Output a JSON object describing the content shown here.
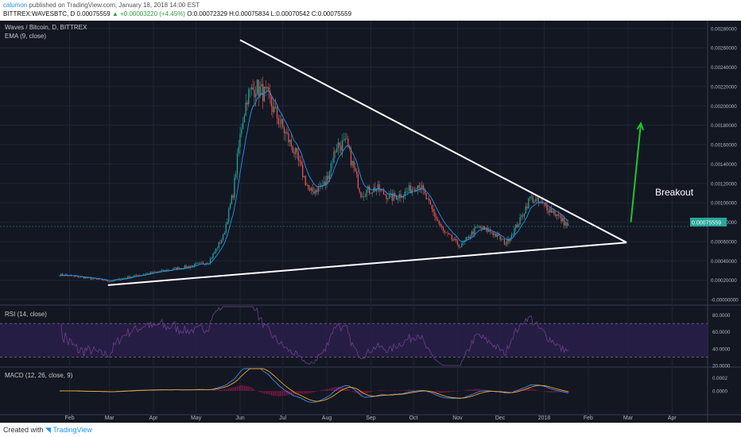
{
  "header": {
    "author": "calumon",
    "published": "published on TradingView.com, January 18, 2018 14:00 EST",
    "symbol": "BITTREX:WAVESBTC, D",
    "open": "0.00075559",
    "change": "▲ +0.00003220 (+4.45%)",
    "o": "O:0.00072329",
    "h": "H:0.00075834",
    "l": "L:0.00070542",
    "c": "C:0.00075559"
  },
  "legend": {
    "pair": "Waves / Bitcoin, D, BITTREX",
    "ema": "EMA (9, close)",
    "rsi": "RSI (14, close)",
    "macd": "MACD (12, 26, close, 9)"
  },
  "annotation": {
    "breakout": "Breakout"
  },
  "current_price_label": "0.00075559",
  "footer": {
    "created_with": "Created with",
    "brand": "TradingView"
  },
  "colors": {
    "background": "#131722",
    "up": "#26a69a",
    "down": "#ef5350",
    "ema": "#2196f3",
    "trendline": "#ffffff",
    "arrow": "#22c42a",
    "rsi_band": "#2a1f4a",
    "rsi_line": "#6b3f8c",
    "macd_line": "#3b8ff0",
    "signal_line": "#f5a623",
    "hist": "#c2185b"
  },
  "chart_data": {
    "type": "candlestick",
    "title": "Waves / Bitcoin, D, BITTREX",
    "x_tick_labels": [
      "Feb",
      "Mar",
      "Apr",
      "May",
      "Jun",
      "Jul",
      "Aug",
      "Sep",
      "Oct",
      "Nov",
      "Dec",
      "2018",
      "Feb",
      "Mar",
      "Apr"
    ],
    "y_tick_labels": [
      "0.00280000",
      "0.00260000",
      "0.00240000",
      "0.00220000",
      "0.00200000",
      "0.00180000",
      "0.00160000",
      "0.00140000",
      "0.00120000",
      "0.00100000",
      "0.00080000",
      "0.00060000",
      "0.00040000",
      "0.00020000",
      "-0.00000000"
    ],
    "ylim": [
      -4e-05,
      0.00288
    ],
    "close_series": [
      [
        "2017-01-25",
        0.00026
      ],
      [
        "2017-02-10",
        0.00023
      ],
      [
        "2017-02-25",
        0.0002
      ],
      [
        "2017-03-01",
        0.00019
      ],
      [
        "2017-03-20",
        0.00025
      ],
      [
        "2017-04-05",
        0.00029
      ],
      [
        "2017-04-25",
        0.00034
      ],
      [
        "2017-05-10",
        0.00039
      ],
      [
        "2017-05-20",
        0.00065
      ],
      [
        "2017-05-27",
        0.0011
      ],
      [
        "2017-06-02",
        0.0018
      ],
      [
        "2017-06-06",
        0.0021
      ],
      [
        "2017-06-12",
        0.0022
      ],
      [
        "2017-06-20",
        0.0021
      ],
      [
        "2017-06-30",
        0.0018
      ],
      [
        "2017-07-10",
        0.0015
      ],
      [
        "2017-07-20",
        0.0011
      ],
      [
        "2017-07-31",
        0.0012
      ],
      [
        "2017-08-08",
        0.0016
      ],
      [
        "2017-08-15",
        0.0016
      ],
      [
        "2017-08-25",
        0.0011
      ],
      [
        "2017-09-05",
        0.00115
      ],
      [
        "2017-09-15",
        0.00105
      ],
      [
        "2017-09-25",
        0.0011
      ],
      [
        "2017-10-05",
        0.0012
      ],
      [
        "2017-10-12",
        0.00098
      ],
      [
        "2017-10-22",
        0.0007
      ],
      [
        "2017-11-03",
        0.00055
      ],
      [
        "2017-11-15",
        0.00075
      ],
      [
        "2017-11-25",
        0.0007
      ],
      [
        "2017-12-05",
        0.00058
      ],
      [
        "2017-12-15",
        0.00082
      ],
      [
        "2017-12-22",
        0.00105
      ],
      [
        "2017-12-31",
        0.00098
      ],
      [
        "2018-01-08",
        0.0009
      ],
      [
        "2018-01-18",
        0.00075559
      ]
    ],
    "ema_period": 9,
    "current_price": 0.00075559,
    "trendlines": [
      {
        "name": "resistance",
        "from": [
          "2017-06-01",
          0.00268
        ],
        "to": [
          "2018-02-28",
          0.00059
        ]
      },
      {
        "name": "support",
        "from": [
          "2017-02-28",
          0.00015
        ],
        "to": [
          "2018-02-28",
          0.00059
        ]
      }
    ],
    "annotation": {
      "text": "Breakout",
      "arrow_from": [
        "2018-03-03",
        0.0008
      ],
      "arrow_to": [
        "2018-03-10",
        0.00182
      ]
    },
    "rsi": {
      "period": 14,
      "ticks": [
        "80.0000",
        "60.0000",
        "40.0000",
        "20.0000"
      ],
      "bands": [
        70,
        30
      ],
      "ylim": [
        20,
        90
      ]
    },
    "macd": {
      "params": [
        12,
        26,
        9
      ],
      "ticks": [
        "0.0002",
        "0.0000"
      ],
      "ylim": [
        -0.00034,
        0.00034
      ]
    }
  }
}
